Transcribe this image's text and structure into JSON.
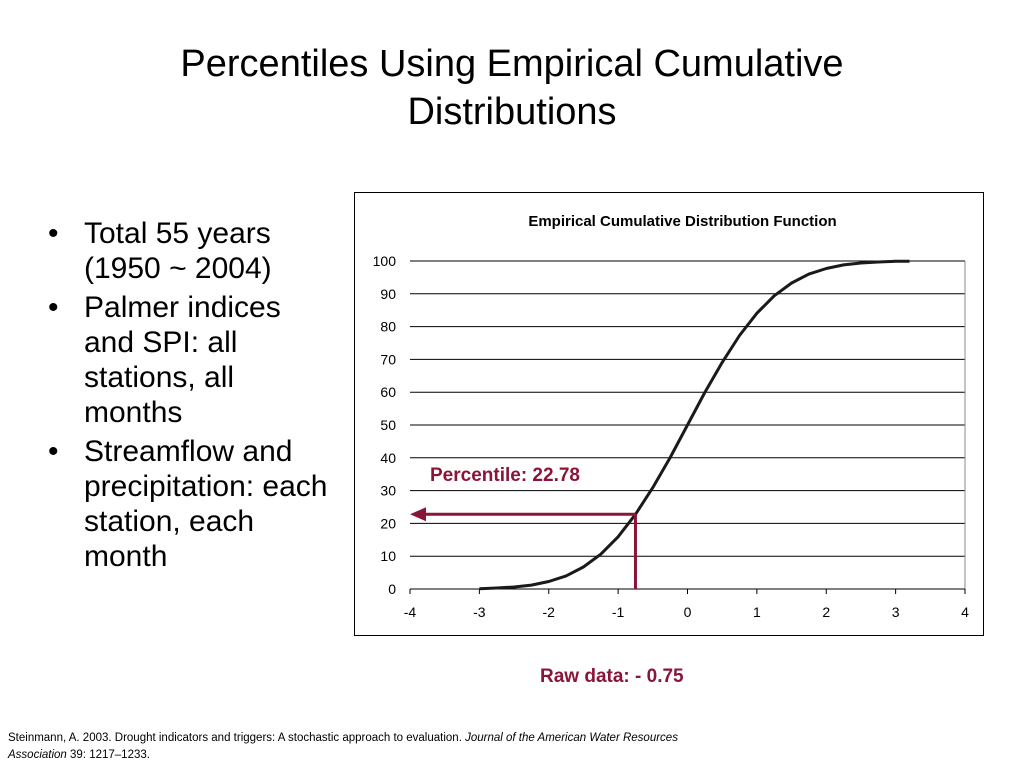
{
  "slide": {
    "title_line1": "Percentiles Using Empirical Cumulative",
    "title_line2": "Distributions"
  },
  "bullets": [
    "Total 55 years (1950 ~ 2004)",
    "Palmer indices and SPI: all stations, all months",
    "Streamflow and precipitation: each station, each month"
  ],
  "citation": {
    "text": "Steinmann, A. 2003. Drought indicators and triggers: A stochastic approach to evaluation. ",
    "journal": "Journal of the American Water Resources Association",
    "tail": " 39: 1217–1233."
  },
  "chart_data": {
    "type": "line",
    "title": "Empirical Cumulative Distribution Function",
    "xlim": [
      -4,
      4
    ],
    "ylim": [
      0,
      100
    ],
    "x_ticks": [
      "-4",
      "-3",
      "-2",
      "-1",
      "0",
      "1",
      "2",
      "3",
      "4"
    ],
    "y_ticks": [
      "0",
      "10",
      "20",
      "30",
      "40",
      "50",
      "60",
      "70",
      "80",
      "90",
      "100"
    ],
    "grid": "horizontal",
    "series": [
      {
        "color": "#1a1a1a",
        "x": [
          -3.0,
          -2.75,
          -2.5,
          -2.25,
          -2.0,
          -1.75,
          -1.5,
          -1.25,
          -1.0,
          -0.75,
          -0.5,
          -0.25,
          0.0,
          0.25,
          0.5,
          0.75,
          1.0,
          1.25,
          1.5,
          1.75,
          2.0,
          2.25,
          2.5,
          2.75,
          3.0,
          3.2
        ],
        "y": [
          0.1,
          0.3,
          0.6,
          1.2,
          2.3,
          4.0,
          6.7,
          10.6,
          15.9,
          22.78,
          30.9,
          40.1,
          50.0,
          59.9,
          69.1,
          77.3,
          84.1,
          89.4,
          93.3,
          96.0,
          97.7,
          98.8,
          99.4,
          99.7,
          99.9,
          99.9
        ]
      }
    ],
    "annotation": {
      "label": "Percentile: 22.78",
      "x": -0.75,
      "y": 22.78,
      "color": "#8b1538"
    },
    "raw_label": "Raw data: - 0.75"
  }
}
